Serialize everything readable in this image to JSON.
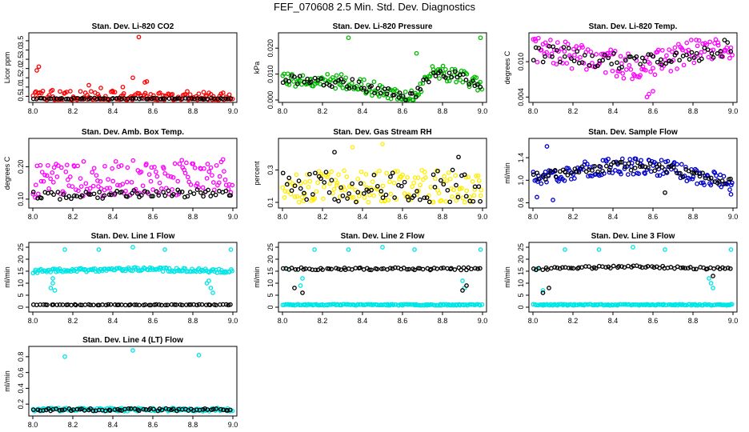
{
  "figure_title": "FEF_070608  2.5 Min. Std. Dev. Diagnostics",
  "chart_data": [
    {
      "type": "scatter",
      "title": "Stan. Dev. Li-820 CO2",
      "xlabel": "",
      "ylabel": "Licor ppm",
      "xlim": [
        8.0,
        9.0
      ],
      "ylim": [
        0.3,
        3.8
      ],
      "xticks": [
        "8.0",
        "8.2",
        "8.4",
        "8.6",
        "8.8",
        "9.0"
      ],
      "yticks": [
        "0.5",
        "1.0",
        "1.5",
        "2.0",
        "2.5",
        "3.0",
        "3.5"
      ],
      "series": [
        {
          "name": "primary",
          "color": "#ff0000",
          "base": [
            [
              8.0,
              0.5
            ],
            [
              9.0,
              0.4
            ]
          ],
          "spread": 0.35,
          "seed": 3,
          "outliers": [
            [
              8.03,
              2.1
            ],
            [
              8.02,
              1.9
            ],
            [
              8.53,
              3.7
            ],
            [
              8.57,
              1.3
            ],
            [
              8.56,
              1.25
            ],
            [
              8.28,
              1.1
            ],
            [
              8.45,
              1.0
            ],
            [
              8.5,
              1.5
            ],
            [
              8.34,
              0.95
            ]
          ]
        },
        {
          "name": "secondary",
          "color": "#000000",
          "base": [
            [
              8.0,
              0.38
            ],
            [
              9.0,
              0.38
            ]
          ],
          "spread": 0.03,
          "seed": 11,
          "outliers": []
        }
      ]
    },
    {
      "type": "scatter",
      "title": "Stan. Dev. Li-820 Pressure",
      "xlabel": "",
      "ylabel": "kPa",
      "xlim": [
        8.0,
        9.0
      ],
      "ylim": [
        0.0,
        0.025
      ],
      "xticks": [
        "8.0",
        "8.2",
        "8.4",
        "8.6",
        "8.8",
        "9.0"
      ],
      "yticks": [
        "0.000",
        "0.010",
        "0.020"
      ],
      "series": [
        {
          "name": "primary",
          "color": "#00bb00",
          "base": [
            [
              8.0,
              0.008
            ],
            [
              8.3,
              0.007
            ],
            [
              8.6,
              0.002
            ],
            [
              8.66,
              0.001
            ],
            [
              8.75,
              0.011
            ],
            [
              8.9,
              0.009
            ],
            [
              9.0,
              0.005
            ]
          ],
          "spread": 0.003,
          "seed": 5,
          "outliers": [
            [
              8.33,
              0.024
            ],
            [
              8.99,
              0.024
            ],
            [
              8.67,
              0.018
            ]
          ]
        },
        {
          "name": "secondary",
          "color": "#000000",
          "base": [
            [
              8.0,
              0.008
            ],
            [
              8.3,
              0.007
            ],
            [
              8.6,
              0.002
            ],
            [
              8.66,
              0.001
            ],
            [
              8.75,
              0.011
            ],
            [
              8.9,
              0.009
            ],
            [
              9.0,
              0.005
            ]
          ],
          "spread": 0.002,
          "seed": 21,
          "outliers": []
        }
      ]
    },
    {
      "type": "scatter",
      "title": "Stan. Dev. Li-820 Temp.",
      "xlabel": "",
      "ylabel": "degrees C",
      "xlim": [
        8.0,
        9.0
      ],
      "ylim": [
        0.0035,
        0.0145
      ],
      "xticks": [
        "8.0",
        "8.2",
        "8.4",
        "8.6",
        "8.8",
        "9.0"
      ],
      "yticks": [
        "0.004",
        "0.010"
      ],
      "series": [
        {
          "name": "primary",
          "color": "#ff00ff",
          "base": [
            [
              8.0,
              0.012
            ],
            [
              8.3,
              0.0105
            ],
            [
              8.5,
              0.009
            ],
            [
              8.65,
              0.01
            ],
            [
              8.8,
              0.012
            ],
            [
              9.0,
              0.0125
            ]
          ],
          "spread": 0.0022,
          "seed": 7,
          "outliers": [
            [
              8.58,
              0.0045
            ],
            [
              8.6,
              0.005
            ],
            [
              8.57,
              0.004
            ]
          ]
        },
        {
          "name": "secondary",
          "color": "#000000",
          "base": [
            [
              8.0,
              0.0115
            ],
            [
              8.3,
              0.0105
            ],
            [
              8.5,
              0.0095
            ],
            [
              8.7,
              0.0105
            ],
            [
              9.0,
              0.0125
            ]
          ],
          "spread": 0.0015,
          "seed": 31,
          "outliers": []
        }
      ]
    },
    {
      "type": "scatter",
      "title": "Stan. Dev. Amb. Box Temp.",
      "xlabel": "",
      "ylabel": "degrees C",
      "xlim": [
        8.0,
        9.0
      ],
      "ylim": [
        0.08,
        0.28
      ],
      "xticks": [
        "8.0",
        "8.2",
        "8.4",
        "8.6",
        "8.8",
        "9.0"
      ],
      "yticks": [
        "0.10",
        "0.20"
      ],
      "series": [
        {
          "name": "primary",
          "color": "#ff00ff",
          "base": [
            [
              8.0,
              0.16
            ],
            [
              9.0,
              0.17
            ]
          ],
          "spread": 0.055,
          "seed": 9,
          "outliers": []
        },
        {
          "name": "secondary",
          "color": "#000000",
          "base": [
            [
              8.0,
              0.11
            ],
            [
              9.0,
              0.12
            ]
          ],
          "spread": 0.012,
          "seed": 41,
          "outliers": []
        }
      ]
    },
    {
      "type": "scatter",
      "title": "Stan. Dev. Gas Stream RH",
      "xlabel": "",
      "ylabel": "percent",
      "xlim": [
        8.0,
        9.0
      ],
      "ylim": [
        0.08,
        0.48
      ],
      "xticks": [
        "8.0",
        "8.2",
        "8.4",
        "8.6",
        "8.8",
        "9.0"
      ],
      "yticks": [
        "0.1",
        "0.3"
      ],
      "series": [
        {
          "name": "primary",
          "color": "#ffee00",
          "base": [
            [
              8.0,
              0.2
            ],
            [
              9.0,
              0.2
            ]
          ],
          "spread": 0.1,
          "seed": 13,
          "outliers": [
            [
              8.35,
              0.44
            ],
            [
              8.5,
              0.46
            ]
          ]
        },
        {
          "name": "secondary",
          "color": "#000000",
          "base": [
            [
              8.0,
              0.2
            ],
            [
              9.0,
              0.2
            ]
          ],
          "spread": 0.1,
          "seed": 51,
          "outliers": [
            [
              8.26,
              0.41
            ],
            [
              8.88,
              0.38
            ]
          ]
        }
      ]
    },
    {
      "type": "scatter",
      "title": "Stan. Dev. Sample Flow",
      "xlabel": "",
      "ylabel": "ml/min",
      "xlim": [
        8.0,
        9.0
      ],
      "ylim": [
        0.55,
        1.7
      ],
      "xticks": [
        "8.0",
        "8.2",
        "8.4",
        "8.6",
        "8.8",
        "9.0"
      ],
      "yticks": [
        "0.6",
        "1.0",
        "1.4"
      ],
      "series": [
        {
          "name": "primary",
          "color": "#0000cc",
          "base": [
            [
              8.0,
              1.05
            ],
            [
              8.4,
              1.25
            ],
            [
              8.6,
              1.25
            ],
            [
              8.8,
              1.1
            ],
            [
              9.0,
              0.95
            ]
          ],
          "spread": 0.15,
          "seed": 17,
          "outliers": [
            [
              8.07,
              1.6
            ],
            [
              8.02,
              0.7
            ],
            [
              8.1,
              0.65
            ],
            [
              8.99,
              0.75
            ]
          ]
        },
        {
          "name": "secondary",
          "color": "#000000",
          "base": [
            [
              8.0,
              1.05
            ],
            [
              8.4,
              1.25
            ],
            [
              8.6,
              1.25
            ],
            [
              8.8,
              1.1
            ],
            [
              9.0,
              0.95
            ]
          ],
          "spread": 0.08,
          "seed": 61,
          "outliers": [
            [
              8.66,
              0.78
            ]
          ]
        }
      ]
    },
    {
      "type": "scatter",
      "title": "Stan. Dev. Line 1 Flow",
      "xlabel": "",
      "ylabel": "ml/min",
      "xlim": [
        8.0,
        9.0
      ],
      "ylim": [
        -1,
        26
      ],
      "xticks": [
        "8.0",
        "8.2",
        "8.4",
        "8.6",
        "8.8",
        "9.0"
      ],
      "yticks": [
        "0",
        "5",
        "10",
        "15",
        "20",
        "25"
      ],
      "series": [
        {
          "name": "primary",
          "color": "#00e5e5",
          "base": [
            [
              8.0,
              15
            ],
            [
              8.5,
              16
            ],
            [
              9.0,
              15
            ]
          ],
          "spread": 0.8,
          "seed": 19,
          "outliers": [
            [
              8.16,
              24
            ],
            [
              8.33,
              24
            ],
            [
              8.5,
              25
            ],
            [
              8.66,
              24
            ],
            [
              8.99,
              24
            ],
            [
              8.1,
              12
            ],
            [
              8.1,
              10
            ],
            [
              8.11,
              7
            ],
            [
              8.09,
              8
            ],
            [
              8.88,
              11
            ],
            [
              8.89,
              8
            ],
            [
              8.9,
              6
            ],
            [
              8.87,
              10
            ]
          ]
        },
        {
          "name": "secondary",
          "color": "#000000",
          "base": [
            [
              8.0,
              1
            ],
            [
              9.0,
              1
            ]
          ],
          "spread": 0.15,
          "seed": 71,
          "outliers": []
        }
      ]
    },
    {
      "type": "scatter",
      "title": "Stan. Dev. Line 2 Flow",
      "xlabel": "",
      "ylabel": "ml/min",
      "xlim": [
        8.0,
        9.0
      ],
      "ylim": [
        -1,
        26
      ],
      "xticks": [
        "8.0",
        "8.2",
        "8.4",
        "8.6",
        "8.8",
        "9.0"
      ],
      "yticks": [
        "0",
        "5",
        "10",
        "15",
        "20",
        "25"
      ],
      "series": [
        {
          "name": "primary",
          "color": "#00e5e5",
          "base": [
            [
              8.0,
              1
            ],
            [
              9.0,
              1
            ]
          ],
          "spread": 0.25,
          "seed": 23,
          "outliers": [
            [
              8.16,
              24
            ],
            [
              8.33,
              24
            ],
            [
              8.5,
              25
            ],
            [
              8.66,
              24
            ],
            [
              8.99,
              24
            ],
            [
              8.02,
              16
            ],
            [
              8.1,
              12
            ],
            [
              8.09,
              9
            ],
            [
              8.9,
              11
            ],
            [
              8.91,
              8
            ]
          ]
        },
        {
          "name": "secondary",
          "color": "#000000",
          "base": [
            [
              8.0,
              16
            ],
            [
              9.0,
              16
            ]
          ],
          "spread": 0.5,
          "seed": 81,
          "outliers": [
            [
              8.06,
              8
            ],
            [
              8.1,
              6
            ],
            [
              8.9,
              7
            ],
            [
              8.92,
              9
            ]
          ]
        }
      ]
    },
    {
      "type": "scatter",
      "title": "Stan. Dev. Line 3 Flow",
      "xlabel": "",
      "ylabel": "ml/min",
      "xlim": [
        8.0,
        9.0
      ],
      "ylim": [
        -1,
        26
      ],
      "xticks": [
        "8.0",
        "8.2",
        "8.4",
        "8.6",
        "8.8",
        "9.0"
      ],
      "yticks": [
        "0",
        "5",
        "10",
        "15",
        "20",
        "25"
      ],
      "series": [
        {
          "name": "primary",
          "color": "#00e5e5",
          "base": [
            [
              8.0,
              1
            ],
            [
              9.0,
              1
            ]
          ],
          "spread": 0.25,
          "seed": 29,
          "outliers": [
            [
              8.16,
              24
            ],
            [
              8.33,
              24
            ],
            [
              8.5,
              25
            ],
            [
              8.66,
              24
            ],
            [
              8.99,
              24
            ],
            [
              8.02,
              16
            ],
            [
              8.05,
              7
            ],
            [
              8.88,
              12
            ],
            [
              8.9,
              8
            ],
            [
              8.89,
              10
            ]
          ]
        },
        {
          "name": "secondary",
          "color": "#000000",
          "base": [
            [
              8.0,
              16
            ],
            [
              8.5,
              17
            ],
            [
              9.0,
              16
            ]
          ],
          "spread": 0.5,
          "seed": 91,
          "outliers": [
            [
              8.05,
              6
            ],
            [
              8.08,
              8
            ],
            [
              8.9,
              13
            ]
          ]
        }
      ]
    },
    {
      "type": "scatter",
      "title": "Stan. Dev. Line 4 (LT) Flow",
      "xlabel": "",
      "ylabel": "ml/min",
      "xlim": [
        8.0,
        9.0
      ],
      "ylim": [
        0.08,
        0.9
      ],
      "xticks": [
        "8.0",
        "8.2",
        "8.4",
        "8.6",
        "8.8",
        "9.0"
      ],
      "yticks": [
        "0.2",
        "0.4",
        "0.6",
        "0.8"
      ],
      "series": [
        {
          "name": "primary",
          "color": "#00e5e5",
          "base": [
            [
              8.0,
              0.13
            ],
            [
              9.0,
              0.13
            ]
          ],
          "spread": 0.02,
          "seed": 37,
          "outliers": [
            [
              8.16,
              0.8
            ],
            [
              8.5,
              0.88
            ],
            [
              8.83,
              0.82
            ]
          ]
        },
        {
          "name": "secondary",
          "color": "#000000",
          "base": [
            [
              8.0,
              0.13
            ],
            [
              9.0,
              0.13
            ]
          ],
          "spread": 0.015,
          "seed": 101,
          "outliers": []
        }
      ]
    }
  ]
}
